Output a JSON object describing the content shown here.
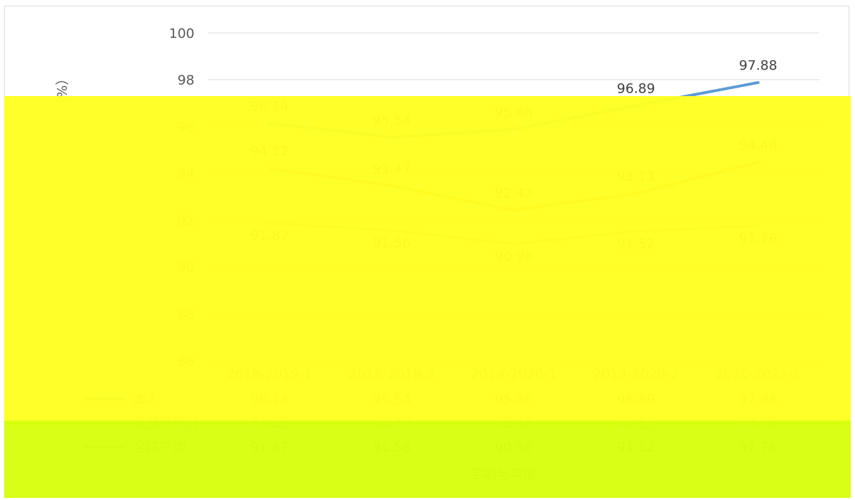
{
  "chart_data": {
    "type": "line",
    "ylabel": "（%）",
    "xlabel": "学期与年度",
    "ylim": [
      86,
      100
    ],
    "yticks": [
      86,
      88,
      90,
      92,
      94,
      96,
      98,
      100
    ],
    "categories": [
      "2018-2019-1",
      "2018-2019-2",
      "2019-2020-1",
      "2019-2020-2",
      "2020-2021-1"
    ],
    "series": [
      {
        "name": "本人",
        "values": [
          96.14,
          95.54,
          95.88,
          96.89,
          97.88
        ],
        "color": "#5b9bd5"
      },
      {
        "name": "系部平均分",
        "values": [
          94.22,
          93.47,
          92.43,
          93.13,
          94.48
        ],
        "color": "#ed7d31"
      },
      {
        "name": "全院平均",
        "values": [
          91.87,
          91.56,
          90.98,
          91.52,
          91.76
        ],
        "color": "#a5a5a5"
      }
    ],
    "legend": "bottom-table",
    "grid": true
  }
}
